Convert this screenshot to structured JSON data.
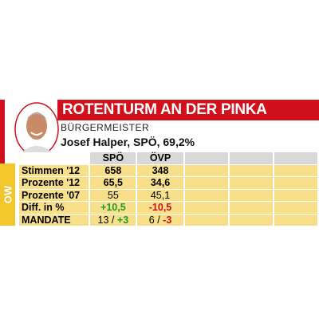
{
  "header": {
    "title": "ROTENTURM AN DER PINKA",
    "subtitle": "BÜRGERMEISTER",
    "mayor": "Josef Halper, SPÖ, 69,2%"
  },
  "side_label": "OW",
  "table": {
    "columns": [
      "SPÖ",
      "ÖVP"
    ],
    "rows": [
      {
        "label": "Stimmen '12",
        "cells": [
          "658",
          "348"
        ]
      },
      {
        "label": "Prozente '12",
        "cells": [
          "65,5",
          "34,6"
        ]
      },
      {
        "label": "Prozente '07",
        "cells": [
          "55",
          "45,1"
        ]
      },
      {
        "label": "Diff. in %",
        "cells": [
          "+10,5",
          "-10,5"
        ]
      },
      {
        "label": "MANDATE",
        "cells": [
          [
            "13",
            "/",
            "+3"
          ],
          [
            "6",
            "/",
            "-3"
          ]
        ]
      }
    ]
  }
}
